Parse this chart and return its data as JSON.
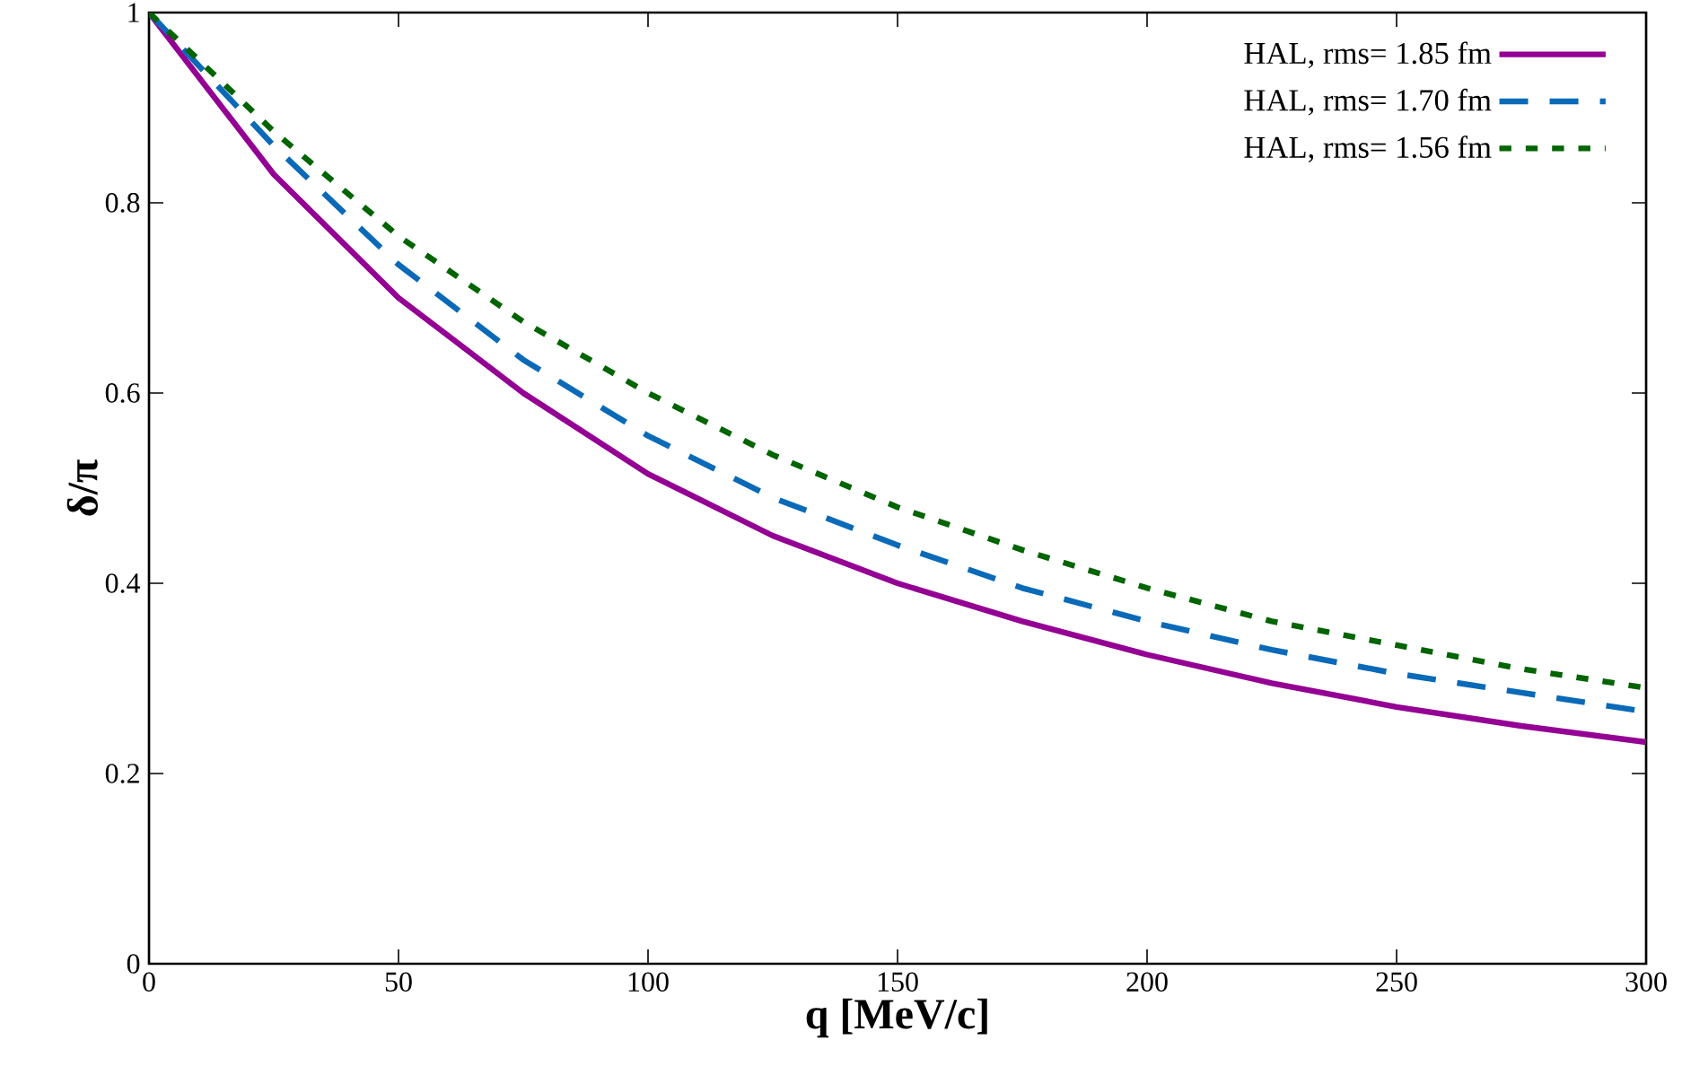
{
  "chart_data": {
    "type": "line",
    "xlabel": "q [MeV/c]",
    "ylabel": "δ/π",
    "x": [
      0,
      25,
      50,
      75,
      100,
      125,
      150,
      175,
      200,
      225,
      250,
      275,
      300
    ],
    "series": [
      {
        "name": "HAL, rms= 1.85 fm",
        "color": "#940094",
        "line_style": "solid",
        "values": [
          1,
          0.83,
          0.7,
          0.6,
          0.515,
          0.45,
          0.4,
          0.36,
          0.325,
          0.295,
          0.27,
          0.25,
          0.233
        ]
      },
      {
        "name": "HAL, rms= 1.70 fm",
        "color": "#0a6ab8",
        "line_style": "dashed",
        "values": [
          1,
          0.86,
          0.735,
          0.635,
          0.555,
          0.49,
          0.44,
          0.395,
          0.36,
          0.33,
          0.305,
          0.285,
          0.265
        ]
      },
      {
        "name": "HAL, rms= 1.56 fm",
        "color": "#006400",
        "line_style": "dotted",
        "values": [
          1,
          0.875,
          0.765,
          0.675,
          0.6,
          0.535,
          0.48,
          0.435,
          0.395,
          0.36,
          0.335,
          0.31,
          0.29
        ]
      }
    ],
    "xlim": [
      0,
      300
    ],
    "xticks": [
      0,
      50,
      100,
      150,
      200,
      250,
      300
    ],
    "ylim": [
      0,
      1
    ],
    "yticks": [
      0,
      0.2,
      0.4,
      0.6,
      0.8,
      1
    ],
    "grid": false,
    "legend": "top right",
    "marker": "none"
  }
}
